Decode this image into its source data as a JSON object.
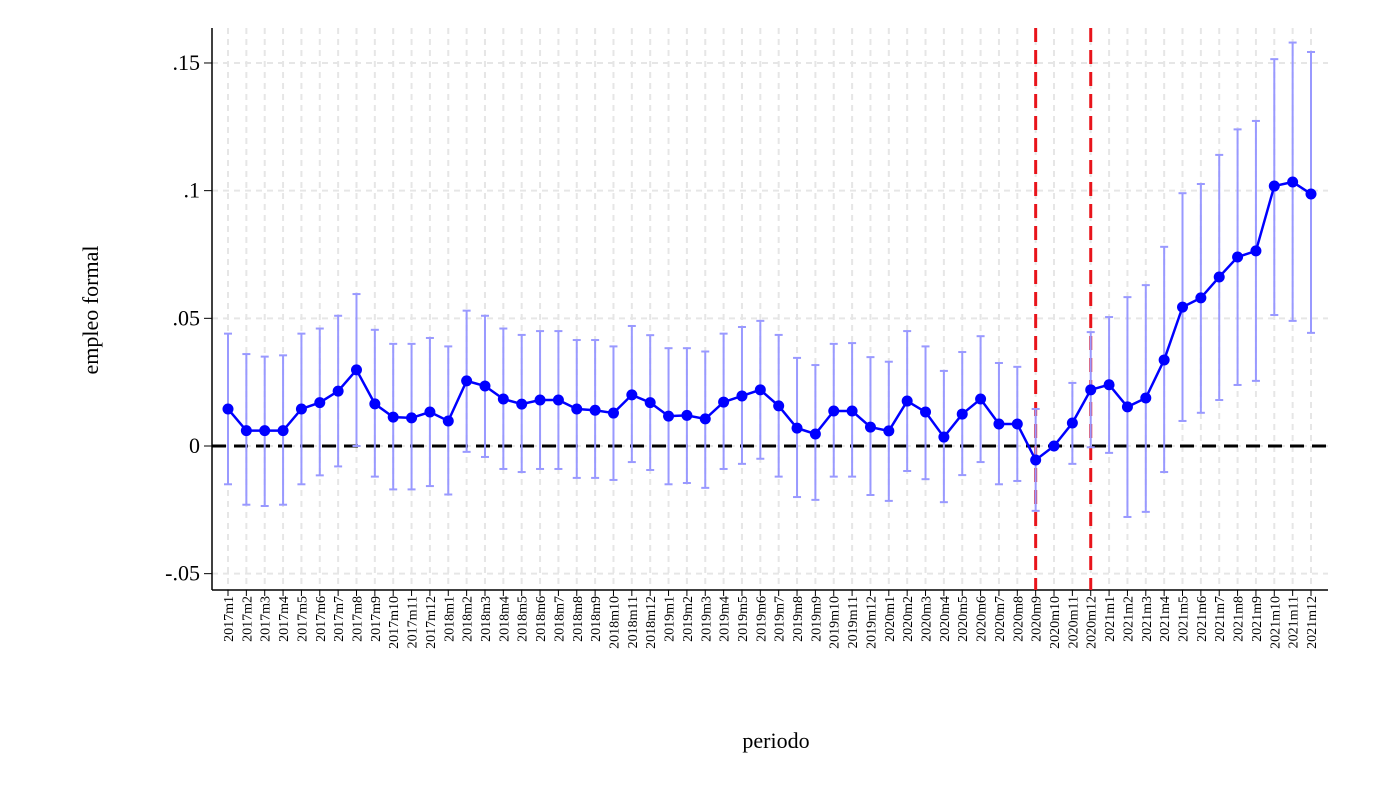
{
  "chart_data": {
    "type": "line",
    "x_label": "periodo",
    "y_label": "empleo formal",
    "categories": [
      "2017m1",
      "2017m2",
      "2017m3",
      "2017m4",
      "2017m5",
      "2017m6",
      "2017m7",
      "2017m8",
      "2017m9",
      "2017m10",
      "2017m11",
      "2017m12",
      "2018m1",
      "2018m2",
      "2018m3",
      "2018m4",
      "2018m5",
      "2018m6",
      "2018m7",
      "2018m8",
      "2018m9",
      "2018m10",
      "2018m11",
      "2018m12",
      "2019m1",
      "2019m2",
      "2019m3",
      "2019m4",
      "2019m5",
      "2019m6",
      "2019m7",
      "2019m8",
      "2019m9",
      "2019m10",
      "2019m11",
      "2019m12",
      "2020m1",
      "2020m2",
      "2020m3",
      "2020m4",
      "2020m5",
      "2020m6",
      "2020m7",
      "2020m8",
      "2020m9",
      "2020m10",
      "2020m11",
      "2020m12",
      "2021m1",
      "2021m2",
      "2021m3",
      "2021m4",
      "2021m5",
      "2021m6",
      "2021m7",
      "2021m8",
      "2021m9",
      "2021m10",
      "2021m11",
      "2021m12"
    ],
    "values": [
      0.0145,
      0.006,
      0.006,
      0.006,
      0.0145,
      0.017,
      0.0215,
      0.0298,
      0.0165,
      0.0113,
      0.011,
      0.0133,
      0.0098,
      0.0255,
      0.0235,
      0.0184,
      0.0164,
      0.018,
      0.018,
      0.0145,
      0.014,
      0.0129,
      0.02,
      0.017,
      0.0117,
      0.012,
      0.0106,
      0.0172,
      0.0196,
      0.022,
      0.0157,
      0.007,
      0.0047,
      0.0137,
      0.0137,
      0.0074,
      0.0059,
      0.0176,
      0.0133,
      0.0035,
      0.0125,
      0.0184,
      0.0086,
      0.0086,
      -0.0055,
      0,
      0.009,
      0.022,
      0.024,
      0.0153,
      0.0188,
      0.0337,
      0.0544,
      0.058,
      0.0662,
      0.074,
      0.0764,
      0.1018,
      0.1034,
      0.0987
    ],
    "ci_lower": [
      -0.015,
      -0.023,
      -0.0235,
      -0.023,
      -0.015,
      -0.0115,
      -0.008,
      0,
      -0.012,
      -0.017,
      -0.017,
      -0.0157,
      -0.019,
      -0.0023,
      -0.0043,
      -0.009,
      -0.0102,
      -0.009,
      -0.009,
      -0.0125,
      -0.0125,
      -0.0133,
      -0.0063,
      -0.0094,
      -0.015,
      -0.0145,
      -0.0164,
      -0.009,
      -0.007,
      -0.005,
      -0.012,
      -0.02,
      -0.0211,
      -0.012,
      -0.012,
      -0.0192,
      -0.0215,
      -0.0098,
      -0.013,
      -0.022,
      -0.0114,
      -0.0063,
      -0.015,
      -0.0137,
      -0.0254,
      0,
      -0.007,
      -0.0005,
      -0.0027,
      -0.0278,
      -0.0258,
      -0.0102,
      0.0098,
      0.013,
      0.018,
      0.0239,
      0.0255,
      0.0513,
      0.049,
      0.0443
    ],
    "ci_upper": [
      0.044,
      0.036,
      0.035,
      0.0355,
      0.044,
      0.046,
      0.051,
      0.0595,
      0.0455,
      0.04,
      0.04,
      0.0423,
      0.039,
      0.053,
      0.051,
      0.046,
      0.0435,
      0.045,
      0.045,
      0.0415,
      0.0415,
      0.039,
      0.047,
      0.0434,
      0.0383,
      0.0383,
      0.037,
      0.044,
      0.0466,
      0.049,
      0.0435,
      0.0345,
      0.0317,
      0.04,
      0.0403,
      0.0348,
      0.033,
      0.045,
      0.039,
      0.0294,
      0.0368,
      0.043,
      0.0325,
      0.031,
      0.0145,
      0,
      0.0247,
      0.0446,
      0.0505,
      0.0583,
      0.063,
      0.078,
      0.099,
      0.1026,
      0.114,
      0.124,
      0.1273,
      0.1515,
      0.158,
      0.1543
    ],
    "color": "#0000ff",
    "ci_color": "#9999ff",
    "ylim": [
      -0.0564,
      0.1637
    ],
    "yticks": [
      {
        "value": -0.05,
        "label": "-.05"
      },
      0,
      {
        "value": 0.05,
        "label": ".05"
      },
      {
        "value": 0.1,
        "label": ".1"
      },
      {
        "value": 0.15,
        "label": ".15"
      }
    ],
    "grid": true,
    "hline": 0,
    "hline_color": "#000000",
    "vlines": [
      "2020m9",
      "2020m12"
    ],
    "vline_color": "#e8141b"
  }
}
